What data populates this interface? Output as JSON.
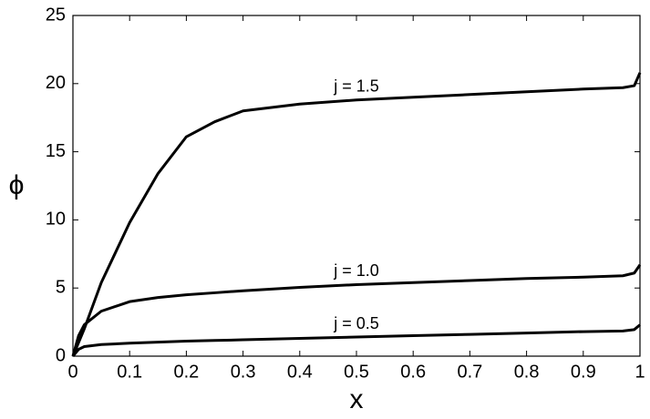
{
  "chart_data": {
    "type": "line",
    "xlabel": "x",
    "ylabel": "ϕ",
    "x": [
      0,
      0.01,
      0.02,
      0.05,
      0.1,
      0.15,
      0.2,
      0.25,
      0.3,
      0.4,
      0.5,
      0.6,
      0.7,
      0.8,
      0.9,
      0.97,
      0.99,
      1
    ],
    "series": [
      {
        "name": "j = 1.5",
        "color": "#000000",
        "values": [
          0,
          1.0,
          2.0,
          5.4,
          9.8,
          13.4,
          16.1,
          17.2,
          18.0,
          18.5,
          18.8,
          19.0,
          19.2,
          19.4,
          19.6,
          19.7,
          19.85,
          20.8
        ]
      },
      {
        "name": "j = 1.0",
        "color": "#000000",
        "values": [
          0,
          1.5,
          2.3,
          3.3,
          4.0,
          4.3,
          4.5,
          4.65,
          4.8,
          5.05,
          5.25,
          5.4,
          5.55,
          5.7,
          5.8,
          5.9,
          6.1,
          6.7
        ]
      },
      {
        "name": "j = 0.5",
        "color": "#000000",
        "values": [
          0,
          0.5,
          0.7,
          0.85,
          0.95,
          1.03,
          1.1,
          1.15,
          1.2,
          1.3,
          1.4,
          1.5,
          1.6,
          1.7,
          1.8,
          1.85,
          1.95,
          2.3
        ]
      }
    ],
    "xlim": [
      0,
      1
    ],
    "xticks": [
      0,
      0.1,
      0.2,
      0.3,
      0.4,
      0.5,
      0.6,
      0.7,
      0.8,
      0.9,
      1
    ],
    "ylim": [
      0,
      25
    ],
    "yticks": [
      0,
      5,
      10,
      15,
      20,
      25
    ]
  }
}
